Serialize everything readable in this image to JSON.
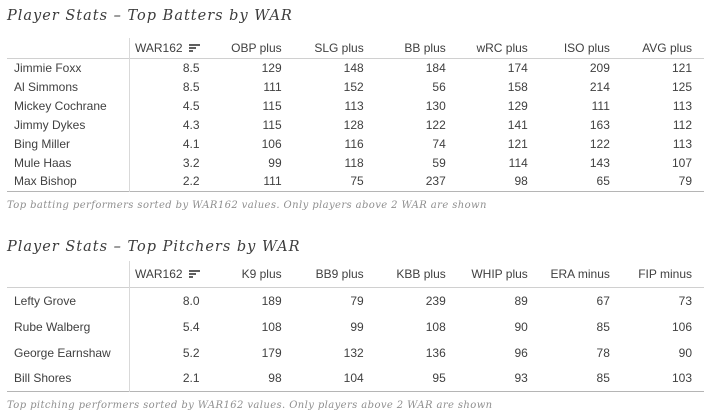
{
  "colors": {
    "background": "#ffffff",
    "text": "#404040",
    "title_text": "#3c3c3c",
    "caption_text": "#8f8f8f",
    "header_rule": "#d0d0d0",
    "column_divider": "#d9d9d9",
    "table_bottom_rule": "#b5b5b5",
    "sort_icon": "#5f5f5f"
  },
  "chart_data": [
    {
      "type": "table",
      "name": "batters",
      "title": "Player Stats – Top Batters by WAR",
      "caption": "Top batting performers sorted by WAR162 values. Only players above 2 WAR are shown",
      "sort": {
        "column": "WAR162",
        "direction": "descending"
      },
      "player_column_header": "",
      "columns": [
        "WAR162",
        "OBP plus",
        "SLG plus",
        "BB plus",
        "wRC plus",
        "ISO plus",
        "AVG plus"
      ],
      "rows": [
        {
          "player": "Jimmie Foxx",
          "values": [
            "8.5",
            "129",
            "148",
            "184",
            "174",
            "209",
            "121"
          ]
        },
        {
          "player": "Al Simmons",
          "values": [
            "8.5",
            "111",
            "152",
            "56",
            "158",
            "214",
            "125"
          ]
        },
        {
          "player": "Mickey Cochrane",
          "values": [
            "4.5",
            "115",
            "113",
            "130",
            "129",
            "111",
            "113"
          ]
        },
        {
          "player": "Jimmy Dykes",
          "values": [
            "4.3",
            "115",
            "128",
            "122",
            "141",
            "163",
            "112"
          ]
        },
        {
          "player": "Bing Miller",
          "values": [
            "4.1",
            "106",
            "116",
            "74",
            "121",
            "122",
            "113"
          ]
        },
        {
          "player": "Mule Haas",
          "values": [
            "3.2",
            "99",
            "118",
            "59",
            "114",
            "143",
            "107"
          ]
        },
        {
          "player": "Max Bishop",
          "values": [
            "2.2",
            "111",
            "75",
            "237",
            "98",
            "65",
            "79"
          ]
        }
      ]
    },
    {
      "type": "table",
      "name": "pitchers",
      "title": "Player Stats – Top Pitchers by WAR",
      "caption": "Top pitching performers sorted by WAR162 values. Only players above 2 WAR are shown",
      "sort": {
        "column": "WAR162",
        "direction": "descending"
      },
      "player_column_header": "",
      "columns": [
        "WAR162",
        "K9 plus",
        "BB9 plus",
        "KBB plus",
        "WHIP plus",
        "ERA minus",
        "FIP minus"
      ],
      "rows": [
        {
          "player": "Lefty Grove",
          "values": [
            "8.0",
            "189",
            "79",
            "239",
            "89",
            "67",
            "73"
          ]
        },
        {
          "player": "Rube Walberg",
          "values": [
            "5.4",
            "108",
            "99",
            "108",
            "90",
            "85",
            "106"
          ]
        },
        {
          "player": "George Earnshaw",
          "values": [
            "5.2",
            "179",
            "132",
            "136",
            "96",
            "78",
            "90"
          ]
        },
        {
          "player": "Bill Shores",
          "values": [
            "2.1",
            "98",
            "104",
            "95",
            "93",
            "85",
            "103"
          ]
        }
      ]
    }
  ]
}
